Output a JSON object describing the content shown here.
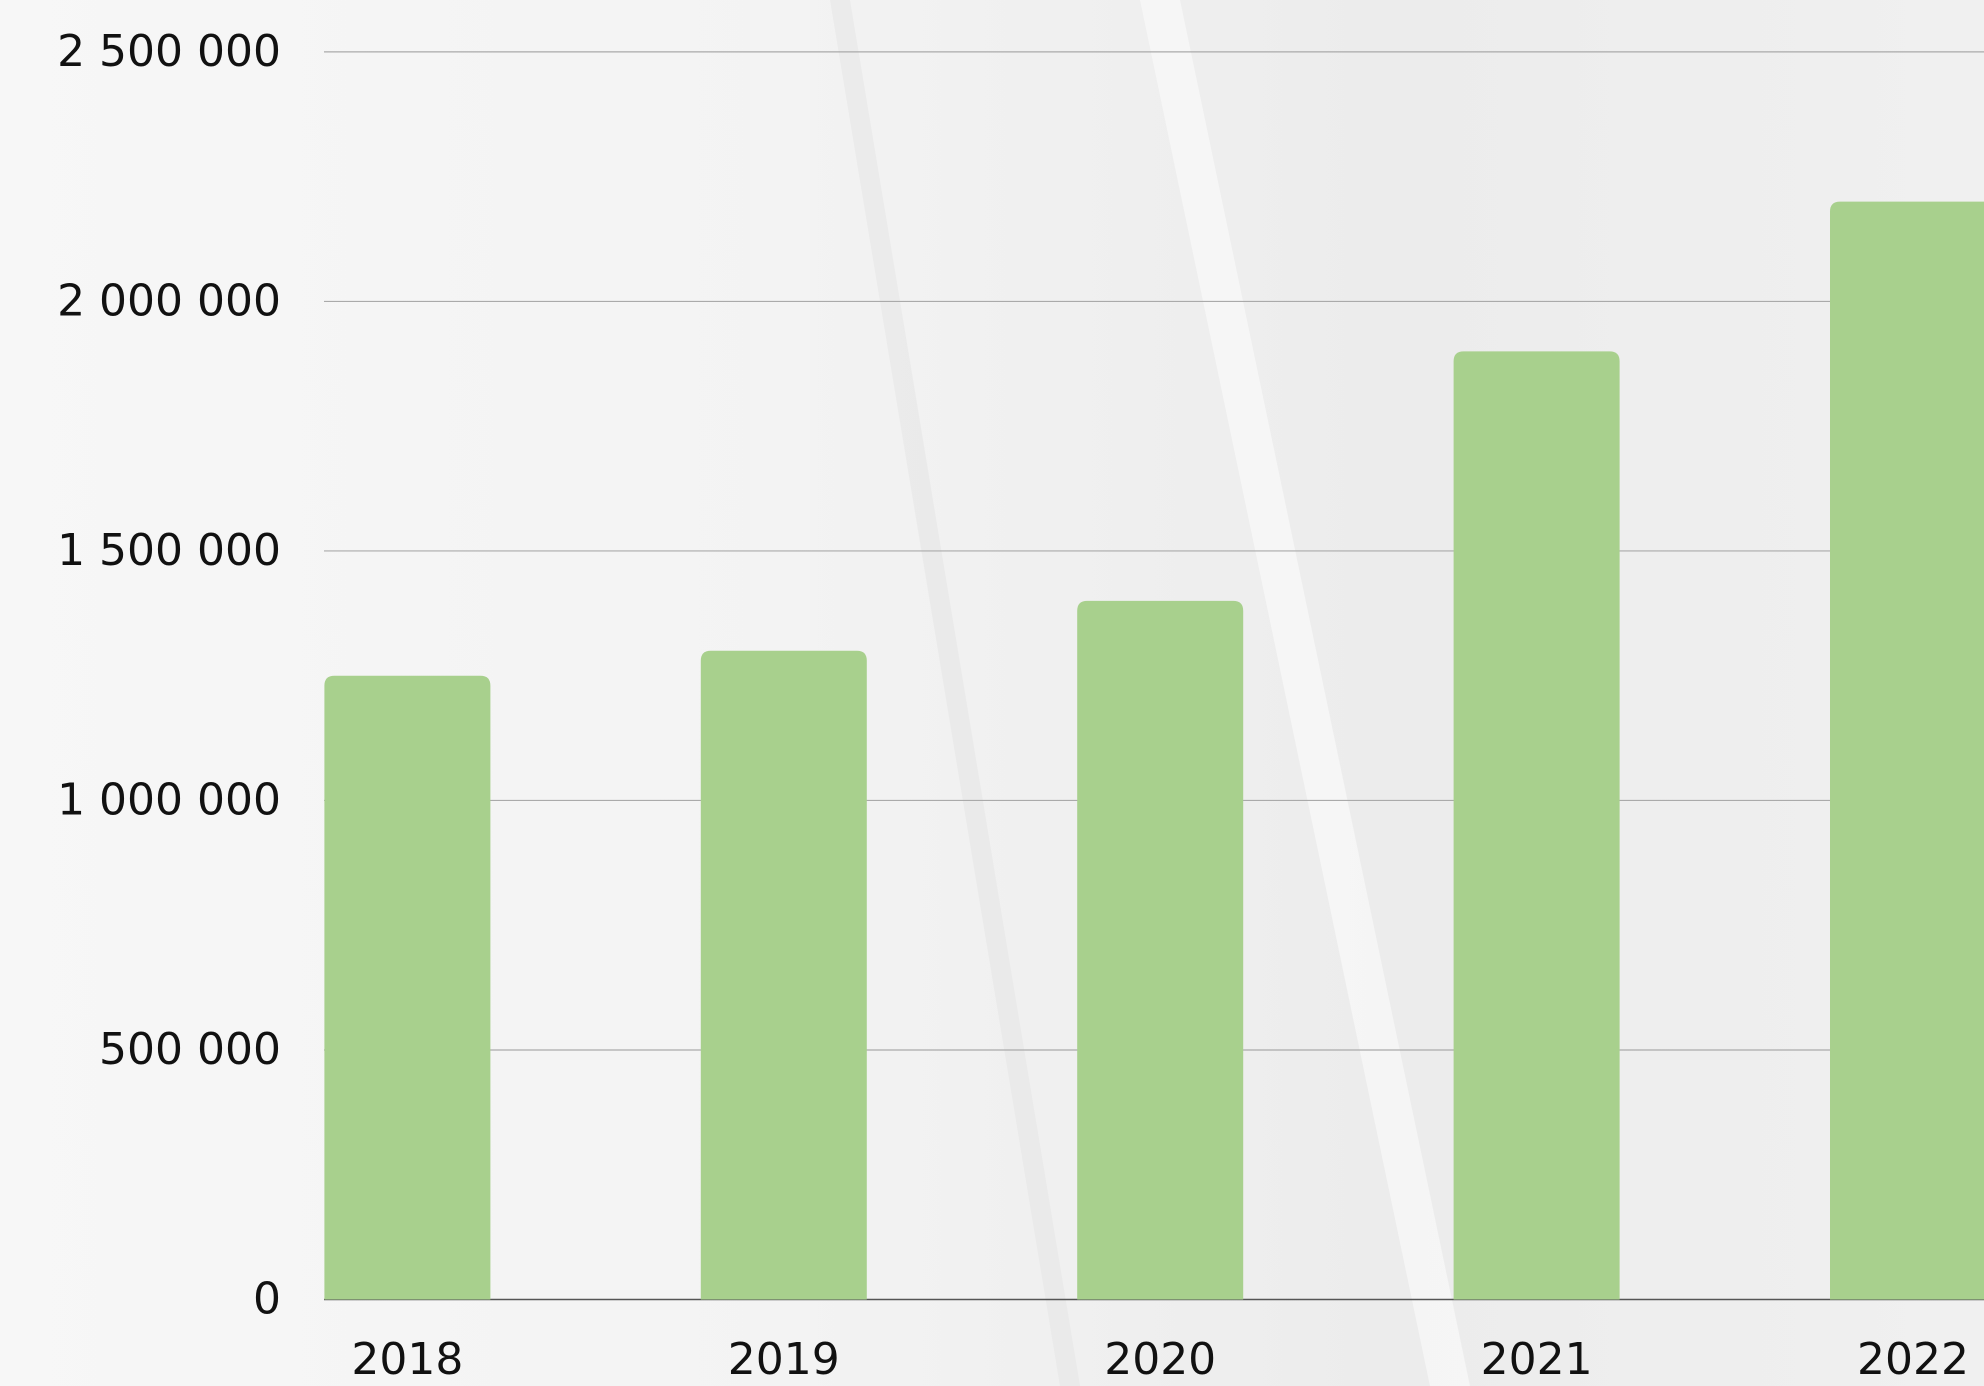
{
  "chart_data": {
    "type": "bar",
    "categories": [
      "2018",
      "2019",
      "2020",
      "2021",
      "2022"
    ],
    "values": [
      1250000,
      1300000,
      1400000,
      1900000,
      2200000
    ],
    "color": "#a8d08d",
    "ylim": [
      0,
      2500000
    ],
    "yticks": [
      0,
      {
        "value": 500000,
        "label": "500 000"
      },
      {
        "value": 1000000,
        "label": "1 000 000"
      },
      {
        "value": 1500000,
        "label": "1 500 000"
      },
      {
        "value": 2000000,
        "label": "2 000 000"
      },
      {
        "value": 2500000,
        "label": "2 500 000"
      }
    ],
    "grid": true
  }
}
